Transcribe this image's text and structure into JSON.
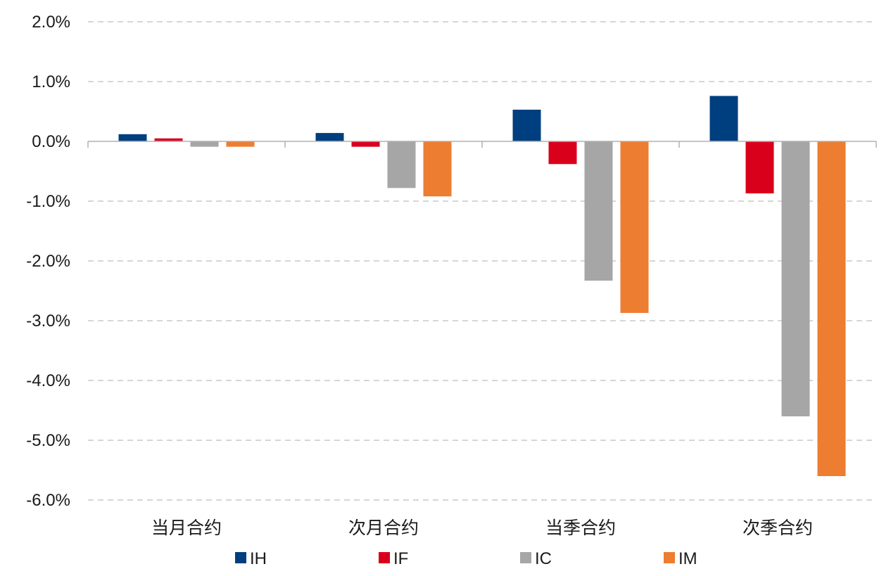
{
  "chart_data": {
    "type": "bar",
    "title": "",
    "xlabel": "",
    "ylabel": "",
    "ylim": [
      -6.0,
      2.0
    ],
    "y_ticks": [
      2.0,
      1.0,
      0.0,
      -1.0,
      -2.0,
      -3.0,
      -4.0,
      -5.0,
      -6.0
    ],
    "y_tick_labels": [
      "2.0%",
      "1.0%",
      "0.0%",
      "-1.0%",
      "-2.0%",
      "-3.0%",
      "-4.0%",
      "-5.0%",
      "-6.0%"
    ],
    "grid": true,
    "legend_position": "bottom",
    "categories": [
      "当月合约",
      "次月合约",
      "当季合约",
      "次季合约"
    ],
    "series": [
      {
        "name": "IH",
        "color": "#003f7f",
        "values": [
          0.12,
          0.14,
          0.53,
          0.76
        ]
      },
      {
        "name": "IF",
        "color": "#d9001b",
        "values": [
          0.05,
          -0.09,
          -0.38,
          -0.87
        ]
      },
      {
        "name": "IC",
        "color": "#a6a6a6",
        "values": [
          -0.09,
          -0.78,
          -2.33,
          -4.6
        ]
      },
      {
        "name": "IM",
        "color": "#ed7d31",
        "values": [
          -0.09,
          -0.92,
          -2.87,
          -5.6
        ]
      }
    ]
  }
}
